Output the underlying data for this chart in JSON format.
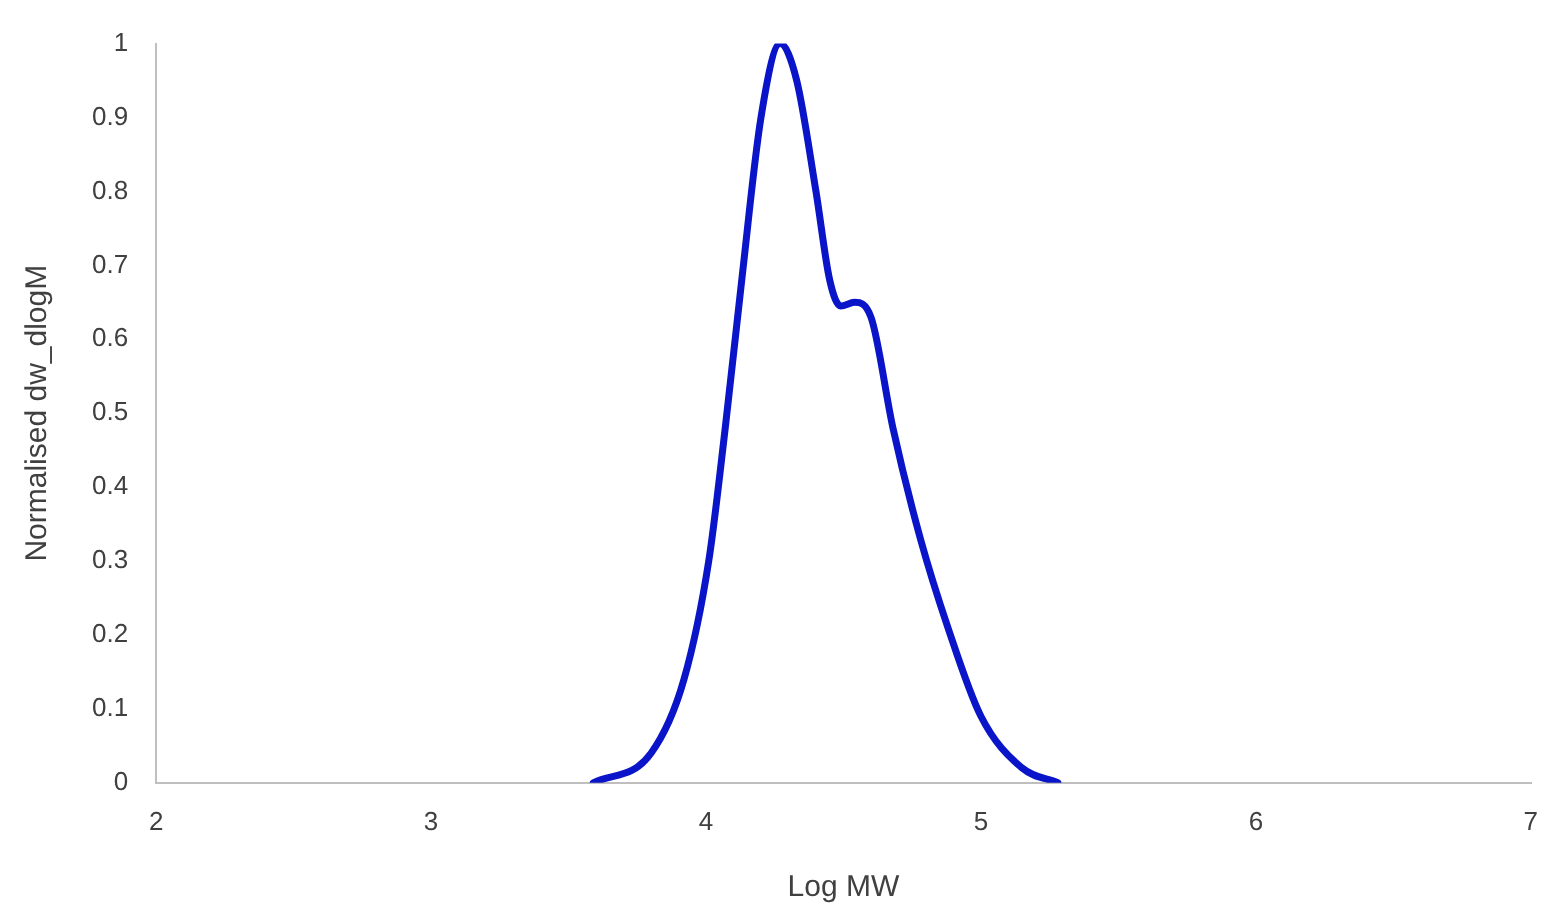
{
  "chart_data": {
    "type": "line",
    "xlabel": "Log MW",
    "ylabel": "Normalised dw_dlogM",
    "x": [
      3.59,
      3.8,
      3.92,
      4.01,
      4.07,
      4.13,
      4.2,
      4.27,
      4.33,
      4.4,
      4.45,
      4.49,
      4.54,
      4.6,
      4.68,
      4.78,
      4.88,
      5.0,
      5.15,
      5.28
    ],
    "series": [
      {
        "color": "#0a14c8",
        "values": [
          0,
          0.04,
          0.14,
          0.3,
          0.48,
          0.68,
          0.9,
          1.0,
          0.95,
          0.8,
          0.68,
          0.645,
          0.65,
          0.63,
          0.48,
          0.33,
          0.21,
          0.09,
          0.02,
          0
        ]
      }
    ],
    "xlim": [
      2,
      7
    ],
    "xticks": [
      2,
      3,
      4,
      5,
      6,
      7
    ],
    "ylim": [
      0,
      1
    ],
    "yticks": [
      0,
      0.1,
      0.2,
      0.3,
      0.4,
      0.5,
      0.6,
      0.7,
      0.8,
      0.9,
      1
    ],
    "grid": false,
    "legend": false,
    "marker": "none",
    "line_style": "solid"
  }
}
